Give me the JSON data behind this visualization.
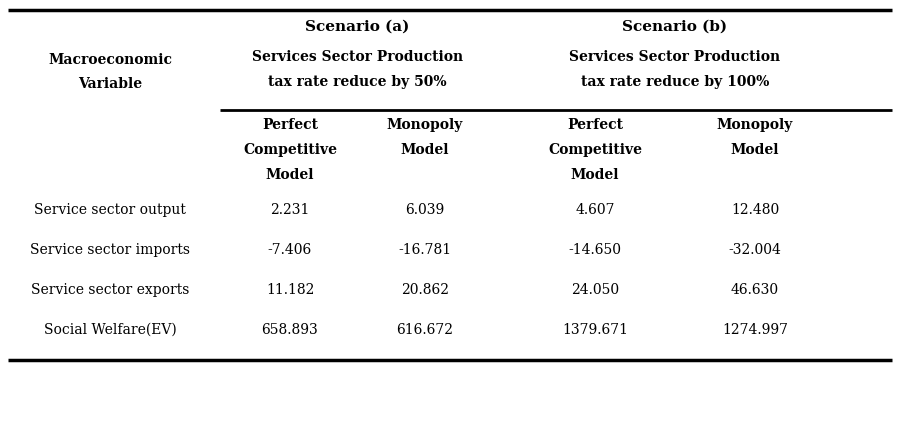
{
  "col1_header": [
    "Macroeconomic",
    "Variable"
  ],
  "scenario_a_label": "Scenario (a)",
  "scenario_a_sub1": "Services Sector Production",
  "scenario_a_sub2": "tax rate reduce by 50%",
  "scenario_b_label": "Scenario (b)",
  "scenario_b_sub1": "Services Sector Production",
  "scenario_b_sub2": "tax rate reduce by 100%",
  "subheaders": [
    [
      "Perfect",
      "Competitive",
      "Model"
    ],
    [
      "Monopoly",
      "Model",
      ""
    ],
    [
      "Perfect",
      "Competitive",
      "Model"
    ],
    [
      "Monopoly",
      "Model",
      ""
    ]
  ],
  "row_labels": [
    "Service sector output",
    "Service sector imports",
    "Service sector exports",
    "Social Welfare(EV)"
  ],
  "data": [
    [
      "2.231",
      "6.039",
      "4.607",
      "12.480"
    ],
    [
      "-7.406",
      "-16.781",
      "-14.650",
      "-32.004"
    ],
    [
      "11.182",
      "20.862",
      "24.050",
      "46.630"
    ],
    [
      "658.893",
      "616.672",
      "1379.671",
      "1274.997"
    ]
  ],
  "bg_color": "#ffffff",
  "text_color": "#000000",
  "line_color": "#000000",
  "fig_width": 9.0,
  "fig_height": 4.32,
  "dpi": 100
}
